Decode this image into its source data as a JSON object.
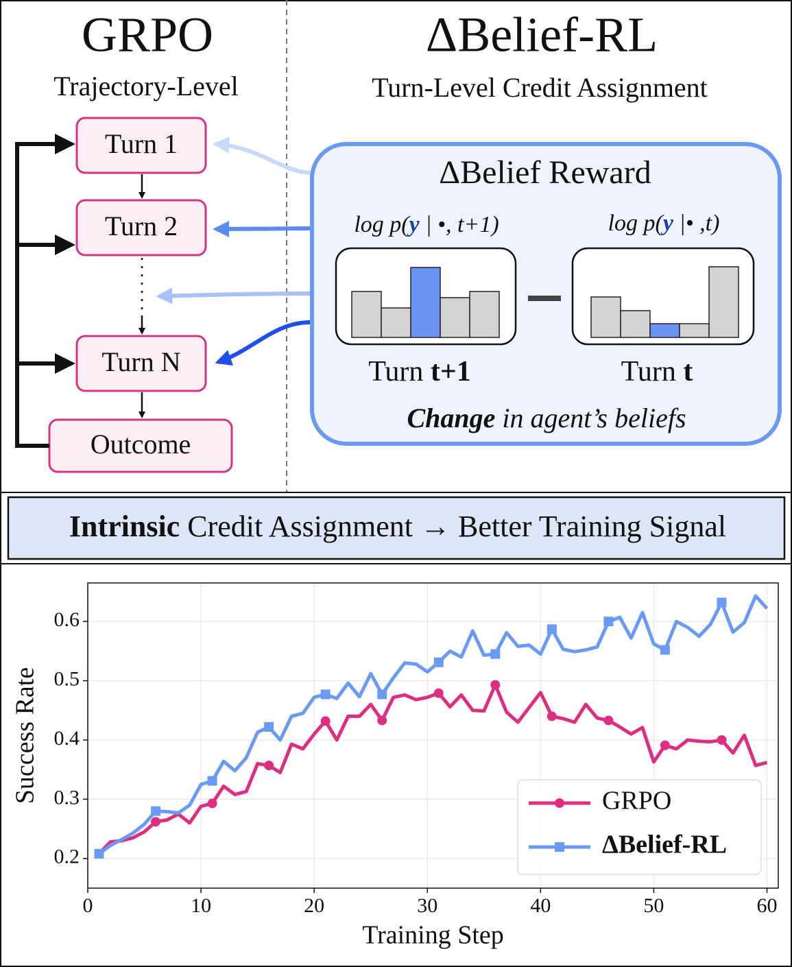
{
  "grpo": {
    "title": "GRPO",
    "subtitle": "Trajectory-Level",
    "turns": [
      "Turn 1",
      "Turn 2",
      "Turn N"
    ],
    "outcome": "Outcome"
  },
  "belief_rl": {
    "title": "ΔBelief-RL",
    "subtitle": "Turn-Level Credit Assignment",
    "box_title": "ΔBelief Reward",
    "left_formula": [
      "log p(",
      "y",
      " | •, t+1)"
    ],
    "right_formula": [
      "log p(",
      "y",
      " |• ,t)"
    ],
    "left_caption": [
      "Turn ",
      "t+1"
    ],
    "right_caption": [
      "Turn ",
      "t"
    ],
    "footer": [
      "Change",
      " in agent’s beliefs"
    ]
  },
  "banner": [
    "Intrinsic",
    " Credit Assignment → Better Training Signal"
  ],
  "chart_data": {
    "type": "line",
    "x_label": "Training Step",
    "y_label": "Success Rate",
    "x": [
      1,
      2,
      3,
      4,
      5,
      6,
      7,
      8,
      9,
      10,
      11,
      12,
      13,
      14,
      15,
      16,
      17,
      18,
      19,
      20,
      21,
      22,
      23,
      24,
      25,
      26,
      27,
      28,
      29,
      30,
      31,
      32,
      33,
      34,
      35,
      36,
      37,
      38,
      39,
      40,
      41,
      42,
      43,
      44,
      45,
      46,
      47,
      48,
      49,
      50,
      51,
      52,
      53,
      54,
      55,
      56,
      57,
      58,
      59,
      60
    ],
    "series": [
      {
        "name": "GRPO",
        "color": "#dc2f7f",
        "marker": "circle",
        "values": [
          0.208,
          0.228,
          0.23,
          0.235,
          0.245,
          0.262,
          0.265,
          0.275,
          0.26,
          0.288,
          0.293,
          0.322,
          0.308,
          0.313,
          0.36,
          0.357,
          0.345,
          0.393,
          0.385,
          0.41,
          0.432,
          0.4,
          0.44,
          0.44,
          0.46,
          0.433,
          0.472,
          0.476,
          0.468,
          0.472,
          0.479,
          0.456,
          0.476,
          0.45,
          0.449,
          0.493,
          0.447,
          0.43,
          0.455,
          0.48,
          0.44,
          0.436,
          0.43,
          0.46,
          0.437,
          0.433,
          0.422,
          0.41,
          0.421,
          0.363,
          0.391,
          0.385,
          0.4,
          0.398,
          0.397,
          0.4,
          0.378,
          0.408,
          0.357,
          0.362
        ]
      },
      {
        "name": "ΔBelief-RL",
        "color": "#6a9af4",
        "marker": "square",
        "values": [
          0.208,
          0.222,
          0.232,
          0.243,
          0.258,
          0.28,
          0.279,
          0.277,
          0.29,
          0.325,
          0.331,
          0.364,
          0.348,
          0.37,
          0.413,
          0.422,
          0.4,
          0.44,
          0.445,
          0.472,
          0.477,
          0.47,
          0.496,
          0.473,
          0.512,
          0.477,
          0.505,
          0.53,
          0.528,
          0.515,
          0.531,
          0.55,
          0.54,
          0.584,
          0.543,
          0.545,
          0.581,
          0.558,
          0.56,
          0.545,
          0.587,
          0.553,
          0.549,
          0.552,
          0.557,
          0.6,
          0.607,
          0.572,
          0.615,
          0.562,
          0.552,
          0.6,
          0.59,
          0.575,
          0.595,
          0.632,
          0.582,
          0.598,
          0.643,
          0.622
        ]
      }
    ],
    "marker_every": 5,
    "xlim": [
      0,
      61
    ],
    "ylim": [
      0.15,
      0.665
    ],
    "xticks": [
      0,
      10,
      20,
      30,
      40,
      50,
      60
    ],
    "yticks": [
      0.2,
      0.3,
      0.4,
      0.5,
      0.6
    ],
    "grid": true,
    "legend": "lower right"
  }
}
